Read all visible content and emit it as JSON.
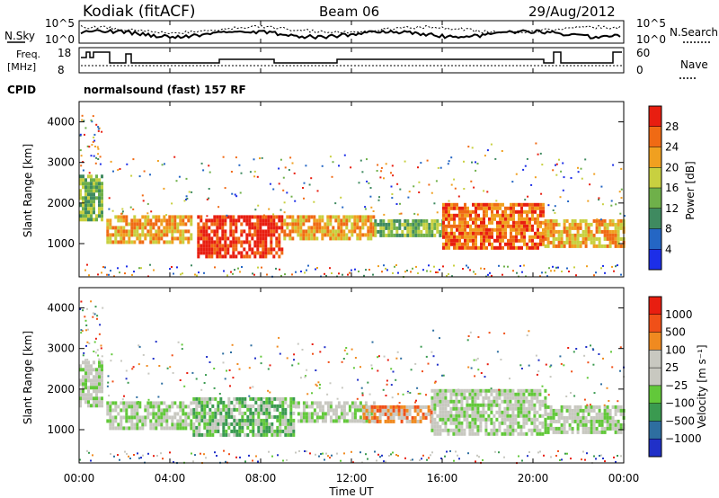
{
  "header": {
    "station": "Kodiak (fitACF)",
    "beam": "Beam 06",
    "date": "29/Aug/2012"
  },
  "noise_panel": {
    "left_label": "N.Sky",
    "right_label": "N.Search",
    "ticks_left": [
      "10^5",
      "10^0"
    ],
    "ticks_right": [
      "10^5",
      "10^0"
    ]
  },
  "freq_panel": {
    "left_label_1": "Freq.",
    "left_label_2": "[MHz]",
    "right_label": "Nave",
    "ticks_left": [
      "18",
      "8"
    ],
    "ticks_right": [
      "60",
      "0"
    ]
  },
  "cpid": {
    "label": "CPID",
    "mode": "normalsound (fast) 157 RF"
  },
  "chart_data": [
    {
      "type": "heatmap",
      "name": "power-panel",
      "ylabel": "Slant Range [km]",
      "y_ticks": [
        "1000",
        "2000",
        "3000",
        "4000"
      ],
      "ylim": [
        180,
        4500
      ],
      "xlim": [
        0,
        24
      ],
      "colorbar_label": "Power [dB]",
      "colorbar_ticks": [
        "4",
        "8",
        "12",
        "16",
        "20",
        "24",
        "28"
      ],
      "colorbar_colors": [
        "#1c2ee8",
        "#2466c4",
        "#3f8a60",
        "#6fb04a",
        "#c8d040",
        "#f0a020",
        "#f06a14",
        "#e81e10"
      ],
      "echo_bands": [
        {
          "t_start": 0.0,
          "t_end": 1.0,
          "range_lo": 1600,
          "range_hi": 2700,
          "level": 3
        },
        {
          "t_start": 1.2,
          "t_end": 5.0,
          "range_lo": 1000,
          "range_hi": 1700,
          "level": 5
        },
        {
          "t_start": 5.2,
          "t_end": 9.0,
          "range_lo": 700,
          "range_hi": 1700,
          "level": 7
        },
        {
          "t_start": 9.0,
          "t_end": 13.0,
          "range_lo": 1100,
          "range_hi": 1700,
          "level": 5
        },
        {
          "t_start": 13.0,
          "t_end": 16.0,
          "range_lo": 1200,
          "range_hi": 1600,
          "level": 3
        },
        {
          "t_start": 16.0,
          "t_end": 20.5,
          "range_lo": 900,
          "range_hi": 2000,
          "level": 6
        },
        {
          "t_start": 20.5,
          "t_end": 24.0,
          "range_lo": 900,
          "range_hi": 1600,
          "level": 5
        }
      ]
    },
    {
      "type": "heatmap",
      "name": "velocity-panel",
      "ylabel": "Slant Range [km]",
      "y_ticks": [
        "1000",
        "2000",
        "3000",
        "4000"
      ],
      "ylim": [
        180,
        4500
      ],
      "xlim": [
        0,
        24
      ],
      "xlabel": "Time UT",
      "x_ticks": [
        "00:00",
        "04:00",
        "08:00",
        "12:00",
        "16:00",
        "20:00",
        "00:00"
      ],
      "colorbar_label": "Velocity [m s⁻¹]",
      "colorbar_ticks": [
        "1000",
        "500",
        "100",
        "25",
        "−25",
        "−100",
        "−500",
        "−1000"
      ],
      "colorbar_colors": [
        "#2030c8",
        "#2e6ea0",
        "#3a9a50",
        "#62c83a",
        "#c8c8c0",
        "#c8c8c0",
        "#f08a20",
        "#f05018",
        "#e81e10"
      ],
      "echo_bands": [
        {
          "t_start": 0.0,
          "t_end": 1.0,
          "range_lo": 1600,
          "range_hi": 2700,
          "level": 4
        },
        {
          "t_start": 1.2,
          "t_end": 5.0,
          "range_lo": 1000,
          "range_hi": 1700,
          "level": 4
        },
        {
          "t_start": 5.0,
          "t_end": 9.5,
          "range_lo": 900,
          "range_hi": 1800,
          "level": 3
        },
        {
          "t_start": 9.5,
          "t_end": 13.0,
          "range_lo": 1200,
          "range_hi": 1700,
          "level": 4
        },
        {
          "t_start": 12.5,
          "t_end": 15.5,
          "range_lo": 1200,
          "range_hi": 1600,
          "level": 6
        },
        {
          "t_start": 15.5,
          "t_end": 20.5,
          "range_lo": 900,
          "range_hi": 2000,
          "level": 4
        },
        {
          "t_start": 20.5,
          "t_end": 24.0,
          "range_lo": 900,
          "range_hi": 1600,
          "level": 4
        }
      ]
    }
  ]
}
